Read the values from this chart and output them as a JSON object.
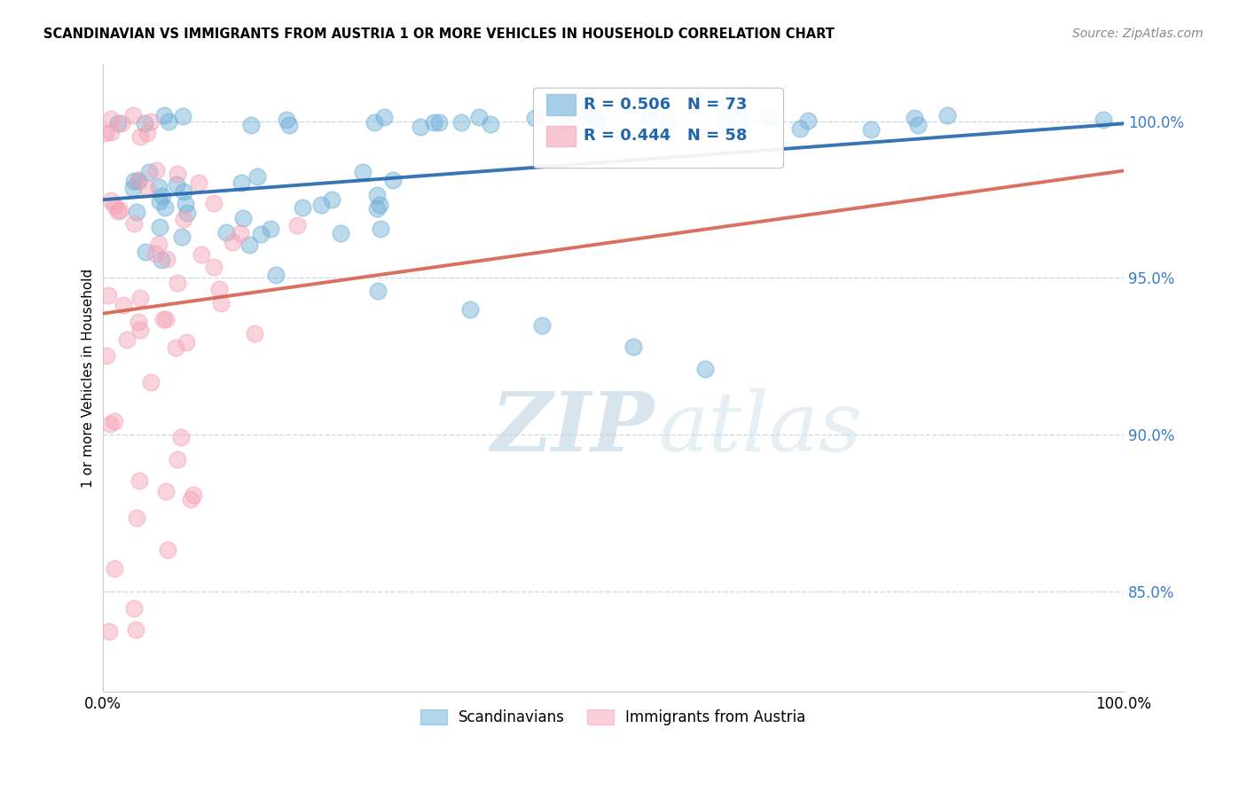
{
  "title": "SCANDINAVIAN VS IMMIGRANTS FROM AUSTRIA 1 OR MORE VEHICLES IN HOUSEHOLD CORRELATION CHART",
  "source": "Source: ZipAtlas.com",
  "ylabel": "1 or more Vehicles in Household",
  "legend_scandinavians": "Scandinavians",
  "legend_austria": "Immigrants from Austria",
  "R_scandinavians": 0.506,
  "N_scandinavians": 73,
  "R_austria": 0.444,
  "N_austria": 58,
  "blue_color": "#6baed6",
  "pink_color": "#f4a0b5",
  "blue_line_color": "#2166ac",
  "pink_line_color": "#d6604d",
  "grid_color": "#c8d8e8",
  "yticks": [
    0.85,
    0.9,
    0.95,
    1.0
  ],
  "ytick_labels": [
    "85.0%",
    "90.0%",
    "95.0%",
    "100.0%"
  ],
  "xlim": [
    0.0,
    1.0
  ],
  "ylim": [
    0.818,
    1.018
  ],
  "background_color": "#ffffff",
  "watermark_zip": "ZIP",
  "watermark_atlas": "atlas",
  "watermark_color": "#d0e4f0"
}
